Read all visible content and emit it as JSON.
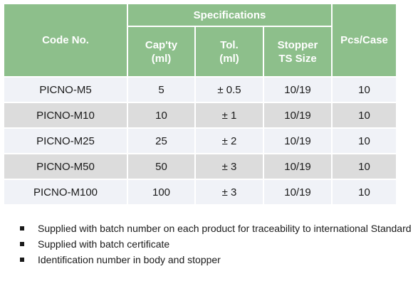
{
  "table": {
    "headers": {
      "code": "Code No.",
      "specifications": "Specifications",
      "capacity_line1": "Cap'ty",
      "capacity_line2": "(ml)",
      "tolerance_line1": "Tol.",
      "tolerance_line2": "(ml)",
      "stopper_line1": "Stopper",
      "stopper_line2": "TS Size",
      "pcs_case": "Pcs/Case"
    },
    "rows": [
      {
        "code": "PICNO-M5",
        "capacity": "5",
        "tolerance": "± 0.5",
        "stopper": "10/19",
        "pcs": "10"
      },
      {
        "code": "PICNO-M10",
        "capacity": "10",
        "tolerance": "± 1",
        "stopper": "10/19",
        "pcs": "10"
      },
      {
        "code": "PICNO-M25",
        "capacity": "25",
        "tolerance": "± 2",
        "stopper": "10/19",
        "pcs": "10"
      },
      {
        "code": "PICNO-M50",
        "capacity": "50",
        "tolerance": "± 3",
        "stopper": "10/19",
        "pcs": "10"
      },
      {
        "code": "PICNO-M100",
        "capacity": "100",
        "tolerance": "± 3",
        "stopper": "10/19",
        "pcs": "10"
      }
    ]
  },
  "notes": [
    "Supplied with batch number on each product for traceability to international Standard",
    "Supplied with batch certificate",
    "Identification number in body and stopper"
  ],
  "colors": {
    "header_bg": "#8dbf8b",
    "row_light": "#f0f2f7",
    "row_dark": "#dcdcdc"
  }
}
